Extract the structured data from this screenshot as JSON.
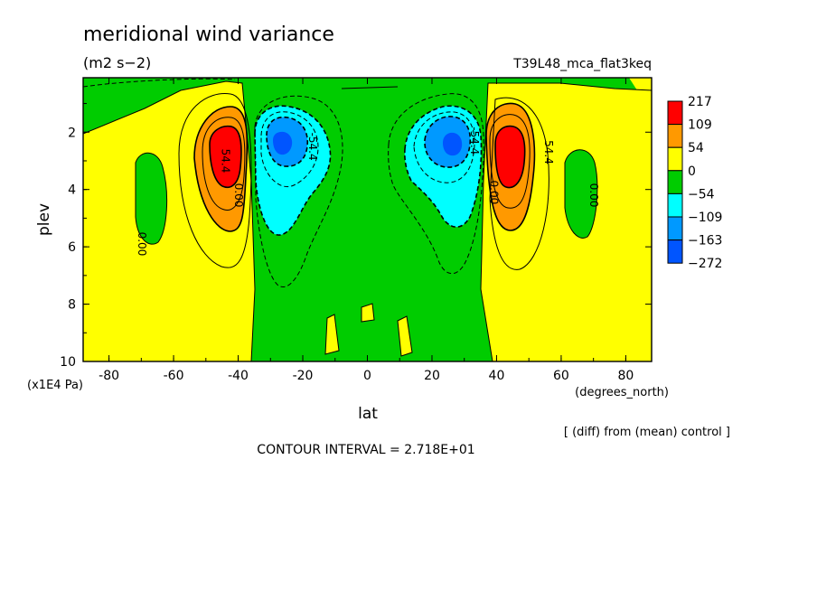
{
  "chart_data": {
    "type": "contour",
    "title": "meridional wind variance",
    "units": "(m2 s−2)",
    "experiment": "T39L48_mca_flat3keq",
    "xlabel": "lat",
    "xunits": "(degrees_north)",
    "ylabel": "plev",
    "yunits": "(x1E4 Pa)",
    "xlim": [
      -88,
      88
    ],
    "ylim": [
      10,
      0.1
    ],
    "x_ticks": [
      -80,
      -60,
      -40,
      -20,
      0,
      20,
      40,
      60,
      80
    ],
    "y_ticks": [
      2,
      4,
      6,
      8,
      10
    ],
    "colorbar": {
      "labels": [
        "217",
        "109",
        "54",
        "0",
        "−54",
        "−109",
        "−163",
        "−272"
      ],
      "colors": [
        "#ff0000",
        "#ff9900",
        "#ffff00",
        "#00cc00",
        "#00ffff",
        "#0099ff",
        "#0055ff"
      ]
    },
    "contour_labels": [
      {
        "text": "54.4",
        "lat": -45,
        "plev": 3.0
      },
      {
        "text": "0.00",
        "lat": -41,
        "plev": 4.2
      },
      {
        "text": "0.00",
        "lat": -71,
        "plev": 5.9
      },
      {
        "text": "-54.4",
        "lat": -18,
        "plev": 2.5
      },
      {
        "text": "-54.4",
        "lat": 32,
        "plev": 2.3
      },
      {
        "text": "0.00",
        "lat": 38,
        "plev": 4.1
      },
      {
        "text": "54.4",
        "lat": 55,
        "plev": 2.7
      },
      {
        "text": "0.00",
        "lat": 69,
        "plev": 4.2
      }
    ],
    "note": "[ (diff) from (mean) control ]",
    "contour_interval": "CONTOUR INTERVAL = 2.718E+01"
  }
}
